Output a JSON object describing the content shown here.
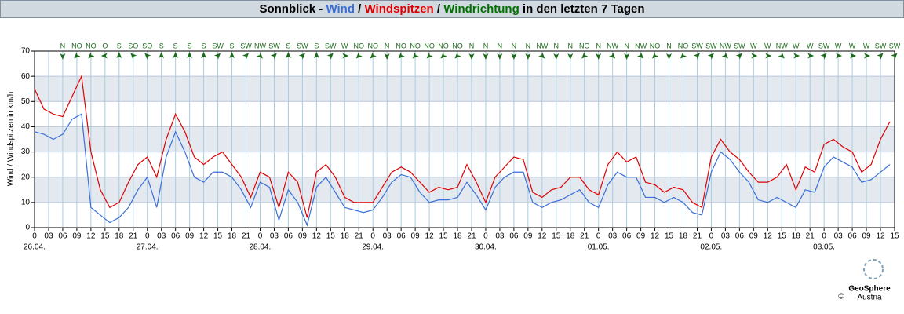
{
  "chart_data": {
    "type": "line",
    "title_parts": [
      {
        "text": "Sonnblick - ",
        "color": "#000000"
      },
      {
        "text": "Wind",
        "color": "#3a6fd8"
      },
      {
        "text": " / ",
        "color": "#000000"
      },
      {
        "text": "Windspitzen",
        "color": "#e00000"
      },
      {
        "text": " / ",
        "color": "#000000"
      },
      {
        "text": "Windrichtung",
        "color": "#007000"
      },
      {
        "text": " in den letzten 7 Tagen",
        "color": "#000000"
      }
    ],
    "ylabel": "Wind / Windspitzen in km/h",
    "ylim": [
      0,
      70
    ],
    "yticks": [
      0,
      10,
      20,
      30,
      40,
      50,
      60,
      70
    ],
    "banded": true,
    "grid": true,
    "xlim": [
      0,
      183
    ],
    "xticks": [
      {
        "value": 0,
        "label": "0"
      },
      {
        "value": 3,
        "label": "03"
      },
      {
        "value": 6,
        "label": "06"
      },
      {
        "value": 9,
        "label": "09"
      },
      {
        "value": 12,
        "label": "12"
      },
      {
        "value": 15,
        "label": "15"
      },
      {
        "value": 18,
        "label": "18"
      },
      {
        "value": 21,
        "label": "21"
      },
      {
        "value": 24,
        "label": "0"
      },
      {
        "value": 27,
        "label": "03"
      },
      {
        "value": 30,
        "label": "06"
      },
      {
        "value": 33,
        "label": "09"
      },
      {
        "value": 36,
        "label": "12"
      },
      {
        "value": 39,
        "label": "15"
      },
      {
        "value": 42,
        "label": "18"
      },
      {
        "value": 45,
        "label": "21"
      },
      {
        "value": 48,
        "label": "0"
      },
      {
        "value": 51,
        "label": "03"
      },
      {
        "value": 54,
        "label": "06"
      },
      {
        "value": 57,
        "label": "09"
      },
      {
        "value": 60,
        "label": "12"
      },
      {
        "value": 63,
        "label": "15"
      },
      {
        "value": 66,
        "label": "18"
      },
      {
        "value": 69,
        "label": "21"
      },
      {
        "value": 72,
        "label": "0"
      },
      {
        "value": 75,
        "label": "03"
      },
      {
        "value": 78,
        "label": "06"
      },
      {
        "value": 81,
        "label": "09"
      },
      {
        "value": 84,
        "label": "12"
      },
      {
        "value": 87,
        "label": "15"
      },
      {
        "value": 90,
        "label": "18"
      },
      {
        "value": 93,
        "label": "21"
      },
      {
        "value": 96,
        "label": "0"
      },
      {
        "value": 99,
        "label": "03"
      },
      {
        "value": 102,
        "label": "06"
      },
      {
        "value": 105,
        "label": "09"
      },
      {
        "value": 108,
        "label": "12"
      },
      {
        "value": 111,
        "label": "15"
      },
      {
        "value": 114,
        "label": "18"
      },
      {
        "value": 117,
        "label": "21"
      },
      {
        "value": 120,
        "label": "0"
      },
      {
        "value": 123,
        "label": "03"
      },
      {
        "value": 126,
        "label": "06"
      },
      {
        "value": 129,
        "label": "09"
      },
      {
        "value": 132,
        "label": "12"
      },
      {
        "value": 135,
        "label": "15"
      },
      {
        "value": 138,
        "label": "18"
      },
      {
        "value": 141,
        "label": "21"
      },
      {
        "value": 144,
        "label": "0"
      },
      {
        "value": 147,
        "label": "03"
      },
      {
        "value": 150,
        "label": "06"
      },
      {
        "value": 153,
        "label": "09"
      },
      {
        "value": 156,
        "label": "12"
      },
      {
        "value": 159,
        "label": "15"
      },
      {
        "value": 162,
        "label": "18"
      },
      {
        "value": 165,
        "label": "21"
      },
      {
        "value": 168,
        "label": "0"
      },
      {
        "value": 171,
        "label": "03"
      },
      {
        "value": 174,
        "label": "06"
      },
      {
        "value": 177,
        "label": "09"
      },
      {
        "value": 180,
        "label": "12"
      },
      {
        "value": 183,
        "label": "15"
      }
    ],
    "date_labels": [
      {
        "value": 0,
        "label": "26.04."
      },
      {
        "value": 24,
        "label": "27.04."
      },
      {
        "value": 48,
        "label": "28.04."
      },
      {
        "value": 72,
        "label": "29.04."
      },
      {
        "value": 96,
        "label": "30.04."
      },
      {
        "value": 120,
        "label": "01.05."
      },
      {
        "value": 144,
        "label": "02.05."
      },
      {
        "value": 168,
        "label": "03.05."
      }
    ],
    "x": [
      0,
      2,
      4,
      6,
      8,
      10,
      12,
      14,
      16,
      18,
      20,
      22,
      24,
      26,
      28,
      30,
      32,
      34,
      36,
      38,
      40,
      42,
      44,
      46,
      48,
      50,
      52,
      54,
      56,
      58,
      60,
      62,
      64,
      66,
      68,
      70,
      72,
      74,
      76,
      78,
      80,
      82,
      84,
      86,
      88,
      90,
      92,
      94,
      96,
      98,
      100,
      102,
      104,
      106,
      108,
      110,
      112,
      114,
      116,
      118,
      120,
      122,
      124,
      126,
      128,
      130,
      132,
      134,
      136,
      138,
      140,
      142,
      144,
      146,
      148,
      150,
      152,
      154,
      156,
      158,
      160,
      162,
      164,
      166,
      168,
      170,
      172,
      174,
      176,
      178,
      180,
      182
    ],
    "series": [
      {
        "name": "Windspitzen",
        "color": "#e00000",
        "values": [
          55,
          47,
          45,
          44,
          52,
          60,
          30,
          15,
          8,
          10,
          18,
          25,
          28,
          20,
          35,
          45,
          38,
          28,
          25,
          28,
          30,
          25,
          20,
          12,
          22,
          20,
          8,
          22,
          18,
          4,
          22,
          25,
          20,
          12,
          10,
          10,
          10,
          16,
          22,
          24,
          22,
          18,
          14,
          16,
          15,
          16,
          25,
          18,
          10,
          20,
          24,
          28,
          27,
          14,
          12,
          15,
          16,
          20,
          20,
          15,
          13,
          25,
          30,
          26,
          28,
          18,
          17,
          14,
          16,
          15,
          10,
          8,
          28,
          35,
          30,
          27,
          22,
          18,
          18,
          20,
          25,
          15,
          24,
          22,
          33,
          35,
          32,
          30,
          22,
          25,
          35,
          42
        ]
      },
      {
        "name": "Wind",
        "color": "#3a6fd8",
        "values": [
          38,
          37,
          35,
          37,
          43,
          45,
          8,
          5,
          2,
          4,
          8,
          15,
          20,
          8,
          28,
          38,
          30,
          20,
          18,
          22,
          22,
          20,
          15,
          8,
          18,
          16,
          3,
          15,
          10,
          1,
          16,
          20,
          14,
          8,
          7,
          6,
          7,
          12,
          18,
          21,
          20,
          14,
          10,
          11,
          11,
          12,
          18,
          13,
          7,
          16,
          20,
          22,
          22,
          10,
          8,
          10,
          11,
          13,
          15,
          10,
          8,
          17,
          22,
          20,
          20,
          12,
          12,
          10,
          12,
          10,
          6,
          5,
          22,
          30,
          27,
          22,
          18,
          11,
          10,
          12,
          10,
          8,
          15,
          14,
          24,
          28,
          26,
          24,
          18,
          19,
          22,
          25
        ]
      }
    ],
    "wind_direction": {
      "x": [
        6,
        9,
        12,
        15,
        18,
        21,
        24,
        27,
        30,
        33,
        36,
        39,
        42,
        45,
        48,
        51,
        54,
        57,
        60,
        63,
        66,
        69,
        72,
        75,
        78,
        81,
        84,
        87,
        90,
        93,
        96,
        99,
        102,
        105,
        108,
        111,
        114,
        117,
        120,
        123,
        126,
        129,
        132,
        135,
        138,
        141,
        144,
        147,
        150,
        153,
        156,
        159,
        162,
        165,
        168,
        171,
        174,
        177,
        180,
        183
      ],
      "labels": [
        "N",
        "NO",
        "NO",
        "O",
        "S",
        "SO",
        "SO",
        "S",
        "S",
        "S",
        "S",
        "SW",
        "S",
        "SW",
        "NW",
        "SW",
        "S",
        "SW",
        "S",
        "SW",
        "W",
        "NO",
        "NO",
        "N",
        "NO",
        "NO",
        "NO",
        "NO",
        "NO",
        "N",
        "N",
        "N",
        "N",
        "N",
        "NW",
        "N",
        "N",
        "NO",
        "N",
        "NW",
        "N",
        "NW",
        "NO",
        "N",
        "NO",
        "SW",
        "SW",
        "NW",
        "SW",
        "W",
        "W",
        "NW",
        "W",
        "W",
        "SW",
        "W",
        "W",
        "W",
        "SW",
        "SW"
      ],
      "deg": [
        0,
        45,
        45,
        90,
        180,
        135,
        135,
        180,
        180,
        180,
        180,
        225,
        180,
        225,
        315,
        225,
        180,
        225,
        180,
        225,
        270,
        45,
        45,
        0,
        45,
        45,
        45,
        45,
        45,
        0,
        0,
        0,
        0,
        0,
        315,
        0,
        0,
        45,
        0,
        315,
        0,
        315,
        45,
        0,
        45,
        225,
        225,
        315,
        225,
        270,
        270,
        315,
        270,
        270,
        225,
        270,
        270,
        270,
        225,
        225
      ],
      "color": "#1a6a1a"
    },
    "logo": {
      "name": "GeoSphere",
      "copyright": "©",
      "country": "Austria"
    }
  }
}
